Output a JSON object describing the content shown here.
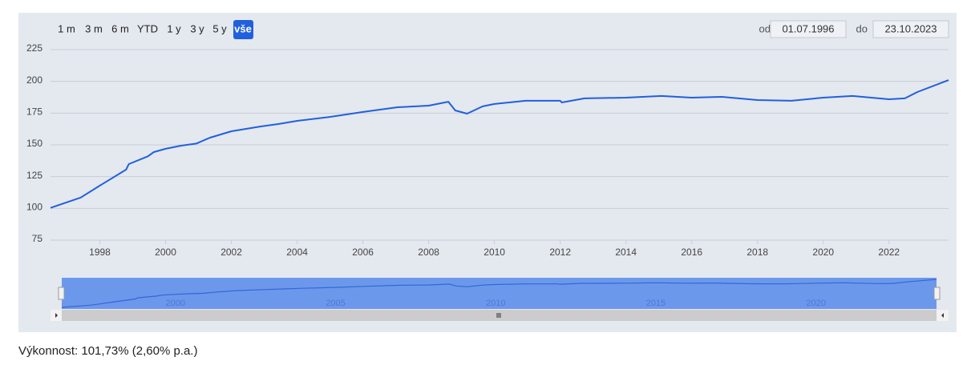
{
  "range_selector": {
    "buttons": [
      "1 m",
      "3 m",
      "6 m",
      "YTD",
      "1 y",
      "3 y",
      "5 y",
      "vše"
    ],
    "selected": 7,
    "from_label": "od",
    "from": "01.07.1996",
    "to_label": "do",
    "to": "23.10.2023"
  },
  "chart_data": {
    "type": "line",
    "color": "#2160dc",
    "grid": true,
    "x": [
      1996.5,
      1997.42,
      1998.0,
      1998.8,
      1998.88,
      1999.46,
      1999.64,
      2000.0,
      2000.47,
      2000.93,
      2001.35,
      2002.0,
      2002.89,
      2003.42,
      2004.0,
      2004.99,
      2006.0,
      2007.05,
      2008.0,
      2008.6,
      2008.81,
      2009.17,
      2009.64,
      2010.0,
      2010.94,
      2012.0,
      2012.05,
      2012.74,
      2014.0,
      2015.08,
      2016.0,
      2016.92,
      2018.0,
      2019.03,
      2020.0,
      2020.89,
      2022.0,
      2022.48,
      2022.86,
      2023.81
    ],
    "values": [
      100.4,
      108.5,
      117.9,
      130.5,
      134.9,
      141,
      144.3,
      146.9,
      149.4,
      151,
      155.7,
      160.7,
      164.5,
      166.4,
      168.9,
      172,
      175.9,
      179.6,
      180.9,
      184,
      177.1,
      174.6,
      180.3,
      182.2,
      184.7,
      184.7,
      183.4,
      186.6,
      187.2,
      188.5,
      187.2,
      187.8,
      185.3,
      184.7,
      187.2,
      188.5,
      185.9,
      186.6,
      191.6,
      201
    ],
    "xlim": [
      1996.5,
      2023.81
    ],
    "xticks": [
      1998,
      2000,
      2002,
      2004,
      2006,
      2008,
      2010,
      2012,
      2014,
      2016,
      2018,
      2020,
      2022
    ],
    "ylim": [
      75,
      225
    ],
    "yticks": [
      75,
      100,
      125,
      150,
      175,
      200,
      225
    ],
    "navigator": {
      "xticks": [
        2000,
        2005,
        2010,
        2015,
        2020
      ]
    }
  },
  "footer": "Výkonnost: 101,73% (2,60% p.a.)"
}
